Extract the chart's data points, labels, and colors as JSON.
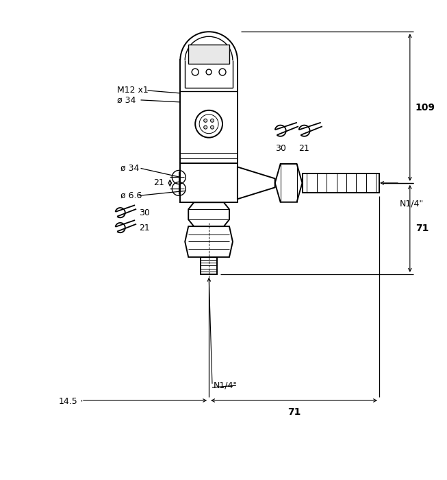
{
  "bg_color": "#ffffff",
  "line_color": "#000000",
  "fig_width": 6.53,
  "fig_height": 7.0,
  "dpi": 100,
  "labels": {
    "M12x1": "M12 x1",
    "phi34_top": "ø 34",
    "phi34_mid": "ø 34",
    "phi66": "ø 6.6",
    "dim21_vert": "21",
    "dim109": "109",
    "dim71_right": "71",
    "dim71_bottom": "71",
    "dim14_5": "14.5",
    "N14_right": "N1/4\"",
    "N14_bottom": "N1/4\"",
    "wrench30_top": "30",
    "wrench21_top": "21",
    "wrench30_bot": "30",
    "wrench21_bot": "21"
  }
}
